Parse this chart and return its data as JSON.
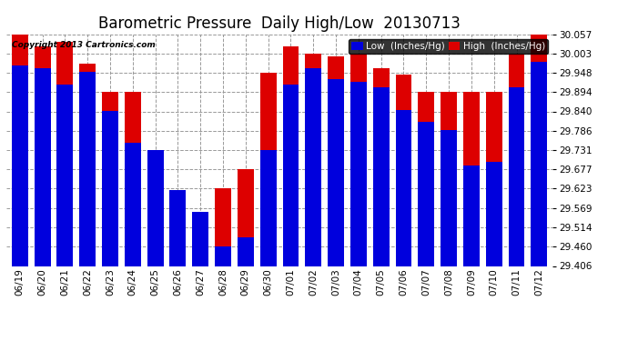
{
  "title": "Barometric Pressure  Daily High/Low  20130713",
  "copyright": "Copyright 2013 Cartronics.com",
  "legend_low": "Low  (Inches/Hg)",
  "legend_high": "High  (Inches/Hg)",
  "low_color": "#0000dd",
  "high_color": "#dd0000",
  "bg_color": "#ffffff",
  "grid_color": "#999999",
  "categories": [
    "06/19",
    "06/20",
    "06/21",
    "06/22",
    "06/23",
    "06/24",
    "06/25",
    "06/26",
    "06/27",
    "06/28",
    "06/29",
    "06/30",
    "07/01",
    "07/02",
    "07/03",
    "07/04",
    "07/05",
    "07/06",
    "07/07",
    "07/08",
    "07/09",
    "07/10",
    "07/11",
    "07/12"
  ],
  "low_values": [
    29.97,
    29.96,
    29.916,
    29.95,
    29.842,
    29.753,
    29.731,
    29.62,
    29.558,
    29.462,
    29.487,
    29.731,
    29.916,
    29.962,
    29.93,
    29.922,
    29.908,
    29.844,
    29.81,
    29.788,
    29.688,
    29.699,
    29.908,
    29.978
  ],
  "high_values": [
    30.057,
    30.022,
    30.035,
    29.975,
    29.894,
    29.894,
    29.677,
    29.596,
    29.462,
    29.623,
    29.677,
    29.948,
    30.022,
    30.003,
    29.995,
    30.003,
    29.96,
    29.943,
    29.894,
    29.894,
    29.894,
    29.894,
    30.003,
    30.057
  ],
  "ylim_min": 29.406,
  "ylim_max": 30.057,
  "yticks": [
    29.406,
    29.46,
    29.514,
    29.569,
    29.623,
    29.677,
    29.731,
    29.786,
    29.84,
    29.894,
    29.948,
    30.003,
    30.057
  ],
  "title_fontsize": 12,
  "tick_fontsize": 7.5,
  "legend_fontsize": 7.5,
  "copyright_fontsize": 6.5
}
